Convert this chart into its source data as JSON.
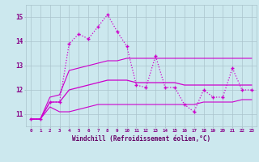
{
  "xlabel": "Windchill (Refroidissement éolien,°C)",
  "x": [
    0,
    1,
    2,
    3,
    4,
    5,
    6,
    7,
    8,
    9,
    10,
    11,
    12,
    13,
    14,
    15,
    16,
    17,
    18,
    19,
    20,
    21,
    22,
    23
  ],
  "y_main": [
    10.8,
    10.8,
    11.5,
    11.5,
    13.9,
    14.3,
    14.1,
    14.6,
    15.1,
    14.4,
    13.8,
    12.2,
    12.1,
    13.4,
    12.1,
    12.1,
    11.4,
    11.1,
    12.0,
    11.7,
    11.7,
    12.9,
    12.0,
    12.0
  ],
  "y_min": [
    10.8,
    10.8,
    11.3,
    11.1,
    11.1,
    11.2,
    11.3,
    11.4,
    11.4,
    11.4,
    11.4,
    11.4,
    11.4,
    11.4,
    11.4,
    11.4,
    11.4,
    11.4,
    11.5,
    11.5,
    11.5,
    11.5,
    11.6,
    11.6
  ],
  "y_max": [
    10.8,
    10.8,
    11.7,
    11.8,
    12.8,
    12.9,
    13.0,
    13.1,
    13.2,
    13.2,
    13.3,
    13.3,
    13.3,
    13.3,
    13.3,
    13.3,
    13.3,
    13.3,
    13.3,
    13.3,
    13.3,
    13.3,
    13.3,
    13.3
  ],
  "y_mean": [
    10.8,
    10.8,
    11.5,
    11.5,
    12.0,
    12.1,
    12.2,
    12.3,
    12.4,
    12.4,
    12.4,
    12.3,
    12.3,
    12.3,
    12.3,
    12.3,
    12.2,
    12.2,
    12.2,
    12.2,
    12.2,
    12.2,
    12.2,
    12.2
  ],
  "ylim": [
    10.5,
    15.5
  ],
  "yticks": [
    11,
    12,
    13,
    14,
    15
  ],
  "line_color": "#cc00cc",
  "line_color_dotted": "#cc44cc",
  "bg_color": "#cce8ee",
  "grid_color": "#aac4cc",
  "tick_label_color": "#880088",
  "axis_label_color": "#660066"
}
